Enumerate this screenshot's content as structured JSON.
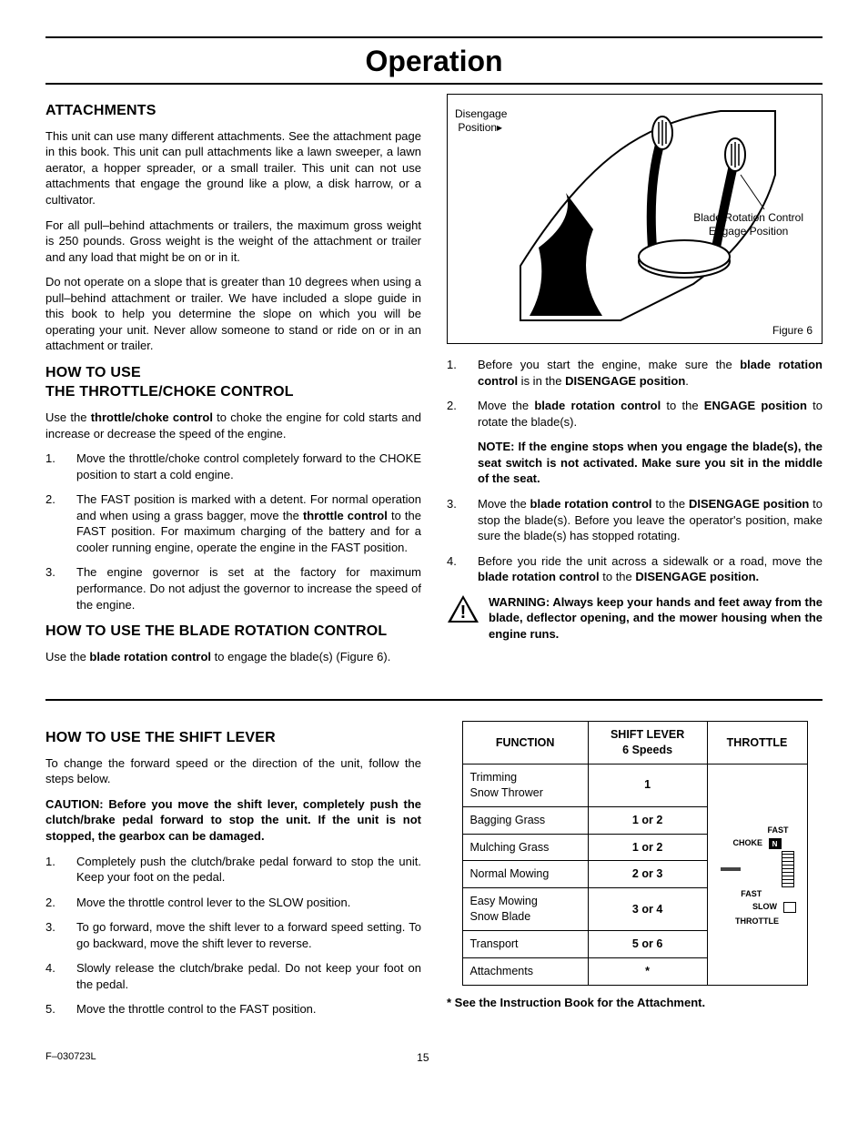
{
  "page_title": "Operation",
  "left_col": {
    "attachments": {
      "heading": "ATTACHMENTS",
      "p1": "This unit can use many different attachments. See the attachment page in this book. This unit can pull attachments like a lawn sweeper, a lawn aerator, a hopper spreader, or a small trailer. This unit can not use attachments that engage the ground like a plow, a disk harrow, or a cultivator.",
      "p2": "For all pull–behind attachments or trailers, the maximum gross weight is 250 pounds. Gross weight is the weight of the attachment or trailer and any load that might be on or in it.",
      "p3": "Do not operate on a slope that is greater than 10 degrees when using a pull–behind attachment or trailer. We have included a slope guide in this book to help you determine the slope on which you will be operating your unit. Never allow someone to stand or ride on or in an attachment or trailer."
    },
    "throttle": {
      "heading_l1": "HOW TO USE",
      "heading_l2": "THE THROTTLE/CHOKE CONTROL",
      "intro_pre": "Use the ",
      "intro_bold": "throttle/choke control",
      "intro_post": " to choke the engine for cold starts and increase or decrease the speed of the engine.",
      "steps": [
        "Move the throttle/choke control completely forward to the CHOKE position to start a cold engine.",
        "The FAST position is marked with a detent. For normal operation and when using a grass bagger, move the <b>throttle control</b> to the FAST position. For maximum charging of the battery and for a cooler running engine, operate the engine in the FAST position.",
        "The engine governor is set at the factory for maximum performance. Do not adjust the governor to increase the speed of the engine."
      ]
    },
    "blade": {
      "heading": "HOW TO USE THE BLADE ROTATION CONTROL",
      "intro_pre": "Use the ",
      "intro_bold": "blade rotation control",
      "intro_post": " to engage the blade(s) (Figure 6)."
    }
  },
  "right_col": {
    "figure": {
      "disengage_l1": "Disengage",
      "disengage_l2": "Position",
      "engage_l1": "Blade Rotation Control",
      "engage_l2": "Engage Position",
      "caption": "Figure 6"
    },
    "blade_steps": {
      "s1_pre": "Before you start the engine, make sure the ",
      "s1_b1": "blade rotation control",
      "s1_mid": " is in the ",
      "s1_b2": "DISENGAGE position",
      "s1_post": ".",
      "s2_pre": "Move the ",
      "s2_b1": "blade rotation control",
      "s2_mid": "  to the ",
      "s2_b2": "ENGAGE position",
      "s2_post": " to rotate the blade(s).",
      "note": "NOTE: If the engine stops when you engage the blade(s), the seat switch is not activated. Make sure you sit in the middle of the seat.",
      "s3_pre": "Move the ",
      "s3_b1": "blade rotation control",
      "s3_mid": " to the ",
      "s3_b2": "DISENGAGE position",
      "s3_post": " to stop the blade(s). Before you leave the operator's position, make sure the blade(s) has stopped rotating.",
      "s4_pre": "Before you ride the unit across a sidewalk or a road, move the ",
      "s4_b1": "blade rotation control",
      "s4_mid": " to the ",
      "s4_b2": "DISENGAGE position.",
      "warning": "WARNING: Always keep your hands and feet away from the blade, deflector opening, and the mower housing when the engine runs."
    }
  },
  "shift": {
    "heading": "HOW TO USE THE SHIFT LEVER",
    "intro": "To change the forward speed or the direction of the unit, follow the steps below.",
    "caution": "CAUTION: Before you move the shift lever, completely push the clutch/brake pedal forward to stop the unit. If the unit is not stopped, the gearbox can be damaged.",
    "steps": [
      "Completely push the clutch/brake pedal forward to stop the unit. Keep your foot on the pedal.",
      "Move the throttle control lever to the SLOW position.",
      "To go forward, move the shift lever to a forward speed setting. To go backward, move the shift lever to reverse.",
      "Slowly release the clutch/brake pedal. Do not keep your foot on the pedal.",
      "Move the throttle control to the FAST position."
    ]
  },
  "table": {
    "headers": {
      "fn": "FUNCTION",
      "sl": "SHIFT LEVER\n6 Speeds",
      "th": "THROTTLE"
    },
    "rows": [
      {
        "fn": "Trimming\nSnow Thrower",
        "sl": "1"
      },
      {
        "fn": "Bagging Grass",
        "sl": "1 or 2"
      },
      {
        "fn": "Mulching Grass",
        "sl": "1 or 2"
      },
      {
        "fn": "Normal Mowing",
        "sl": "2 or 3"
      },
      {
        "fn": "Easy Mowing\nSnow Blade",
        "sl": "3 or 4"
      },
      {
        "fn": "Transport",
        "sl": "5 or 6"
      },
      {
        "fn": "Attachments",
        "sl": "*"
      }
    ],
    "throttle_labels": {
      "fast_top": "FAST",
      "choke": "CHOKE",
      "fast": "FAST",
      "slow": "SLOW",
      "throttle": "THROTTLE"
    },
    "footnote": "* See the Instruction Book for the Attachment."
  },
  "footer": {
    "code": "F–030723L",
    "page": "15"
  }
}
